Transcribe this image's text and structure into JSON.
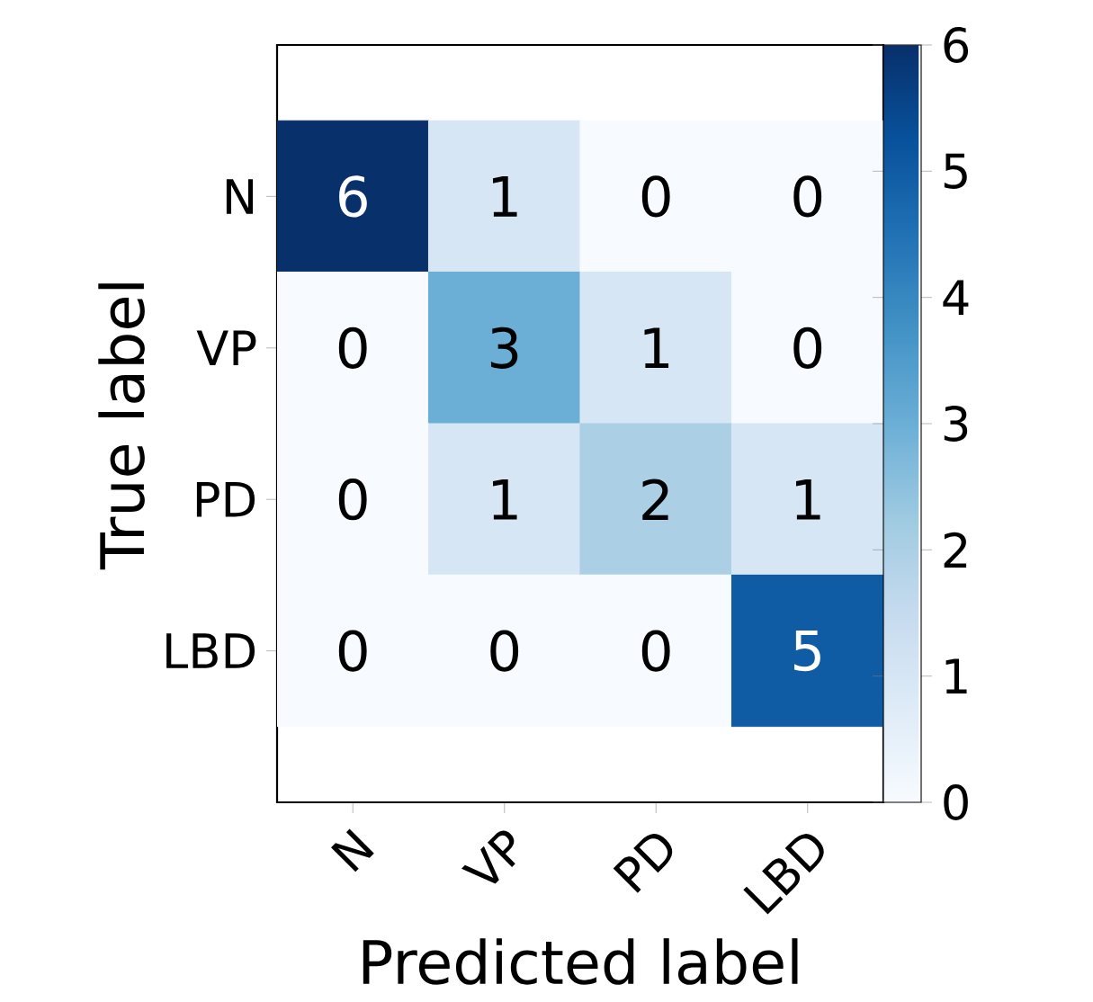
{
  "chart_data": {
    "type": "heatmap",
    "xlabel": "Predicted label",
    "ylabel": "True label",
    "categories": [
      "N",
      "VP",
      "PD",
      "LBD"
    ],
    "y_categories": [
      "N",
      "VP",
      "PD",
      "LBD"
    ],
    "cells": [
      [
        6,
        1,
        0,
        0
      ],
      [
        0,
        3,
        1,
        0
      ],
      [
        0,
        1,
        2,
        1
      ],
      [
        0,
        0,
        0,
        5
      ]
    ],
    "data_labels": true,
    "clim": [
      0,
      6
    ],
    "cticks": [
      0,
      1,
      2,
      3,
      4,
      5,
      6
    ]
  }
}
